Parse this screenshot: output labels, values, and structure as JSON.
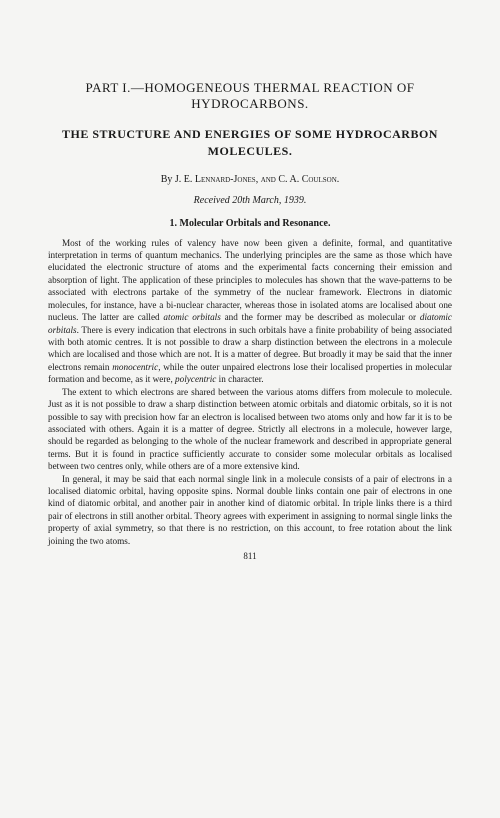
{
  "part_title": "PART I.—HOMOGENEOUS THERMAL REACTION OF HYDROCARBONS.",
  "main_title": "THE STRUCTURE AND ENERGIES OF SOME HYDROCARBON MOLECULES.",
  "authors_prefix": "By ",
  "authors_name1": "J. E. Lennard-Jones",
  "authors_and": ", and ",
  "authors_name2": "C. A. Coulson",
  "authors_suffix": ".",
  "date": "Received 20th March, 1939.",
  "section_title": "1. Molecular Orbitals and Resonance.",
  "para1_a": "Most of the working rules of valency have now been given a definite, formal, and quantitative interpretation in terms of quantum mechanics. The underlying principles are the same as those which have elucidated the electronic structure of atoms and the experimental facts concerning their emission and absorption of light. The application of these principles to molecules has shown that the wave-patterns to be associated with electrons partake of the symmetry of the nuclear framework. Electrons in diatomic molecules, for instance, have a bi-nuclear character, whereas those in isolated atoms are localised about one nucleus. The latter are called ",
  "para1_i1": "atomic orbitals",
  "para1_b": " and the former may be described as molecular or ",
  "para1_i2": "diatomic orbitals",
  "para1_c": ". There is every indication that electrons in such orbitals have a finite probability of being associated with both atomic centres. It is not possible to draw a sharp distinction between the electrons in a molecule which are localised and those which are not. It is a matter of degree. But broadly it may be said that the inner electrons remain ",
  "para1_i3": "monocentric",
  "para1_d": ", while the outer unpaired electrons lose their localised properties in molecular formation and become, as it were, ",
  "para1_i4": "polycentric",
  "para1_e": " in character.",
  "para2": "The extent to which electrons are shared between the various atoms differs from molecule to molecule. Just as it is not possible to draw a sharp distinction between atomic orbitals and diatomic orbitals, so it is not possible to say with precision how far an electron is localised between two atoms only and how far it is to be associated with others. Again it is a matter of degree. Strictly all electrons in a molecule, however large, should be regarded as belonging to the whole of the nuclear framework and described in appropriate general terms. But it is found in practice sufficiently accurate to consider some molecular orbitals as localised between two centres only, while others are of a more extensive kind.",
  "para3": "In general, it may be said that each normal single link in a molecule consists of a pair of electrons in a localised diatomic orbital, having opposite spins. Normal double links contain one pair of electrons in one kind of diatomic orbital, and another pair in another kind of diatomic orbital. In triple links there is a third pair of electrons in still another orbital. Theory agrees with experiment in assigning to normal single links the property of axial symmetry, so that there is no restriction, on this account, to free rotation about the link joining the two atoms.",
  "page_number": "811"
}
